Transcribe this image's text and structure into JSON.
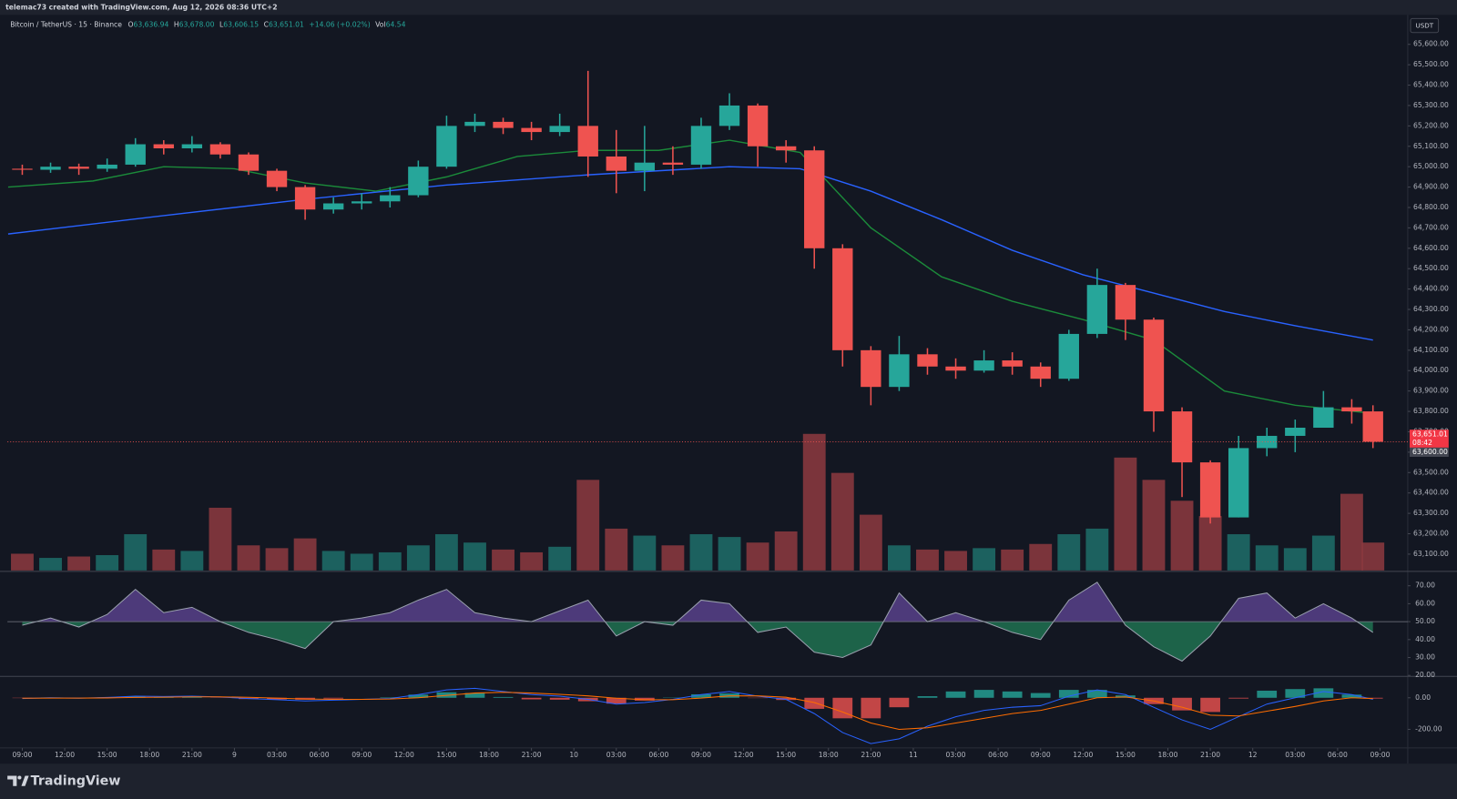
{
  "header": {
    "credit": "telemac73 created with TradingView.com, Aug 12, 2026 08:36 UTC+2",
    "symbol": "Bitcoin / TetherUS · 15 · Binance",
    "ohlc": [
      {
        "label": "O",
        "value": "63,636.94"
      },
      {
        "label": "H",
        "value": "63,678.00"
      },
      {
        "label": "L",
        "value": "63,606.15"
      },
      {
        "label": "C",
        "value": "63,651.01"
      }
    ],
    "change": "+14.06 (+0.02%)",
    "volume_label": "Vol",
    "volume": "64.54"
  },
  "footer": {
    "brand": "TradingView"
  },
  "chart_data": [
    {
      "type": "candlestick",
      "currency": "USDT",
      "up_color": "#26a69a",
      "down_color": "#ef5350",
      "x": [
        0,
        2,
        4,
        6,
        8,
        10,
        12,
        14,
        16,
        18,
        20,
        22,
        24,
        26,
        28,
        30,
        32,
        34,
        36,
        38,
        40,
        42,
        44,
        46,
        48,
        50,
        52,
        54,
        56,
        58,
        60,
        62,
        64,
        66,
        68,
        70,
        72,
        74,
        76,
        78,
        80,
        82,
        84,
        86,
        88,
        90,
        92,
        94,
        95.5
      ],
      "open": [
        64990,
        64985,
        65000,
        64990,
        65010,
        65110,
        65090,
        65110,
        65060,
        64980,
        64900,
        64790,
        64820,
        64830,
        64860,
        65000,
        65200,
        65220,
        65190,
        65170,
        65200,
        65050,
        64980,
        65020,
        65010,
        65200,
        65300,
        65100,
        65080,
        64600,
        64100,
        63920,
        64080,
        64020,
        64000,
        64050,
        64020,
        63960,
        64180,
        64420,
        64250,
        63800,
        63550,
        63280,
        63620,
        63680,
        63720,
        63820,
        63800
      ],
      "high": [
        65010,
        65020,
        65015,
        65040,
        65140,
        65130,
        65150,
        65120,
        65070,
        64990,
        64910,
        64850,
        64870,
        64900,
        65030,
        65250,
        65260,
        65240,
        65220,
        65260,
        65470,
        65180,
        65200,
        65100,
        65240,
        65360,
        65310,
        65130,
        65100,
        64620,
        64120,
        64170,
        64110,
        64060,
        64100,
        64090,
        64040,
        64200,
        64500,
        64430,
        64260,
        63820,
        63560,
        63680,
        63720,
        63760,
        63900,
        63860,
        63830
      ],
      "low": [
        64960,
        64970,
        64960,
        64975,
        65000,
        65060,
        65070,
        65040,
        64960,
        64880,
        64740,
        64770,
        64790,
        64800,
        64850,
        64990,
        65170,
        65160,
        65130,
        65150,
        64950,
        64870,
        64880,
        64960,
        64990,
        65180,
        65000,
        65020,
        64500,
        64020,
        63830,
        63900,
        63980,
        63960,
        63990,
        63980,
        63920,
        63950,
        64160,
        64150,
        63700,
        63380,
        63250,
        63280,
        63580,
        63600,
        63720,
        63740,
        63620
      ],
      "close": [
        64985,
        65000,
        64990,
        65010,
        65110,
        65090,
        65110,
        65060,
        64980,
        64900,
        64790,
        64820,
        64830,
        64860,
        65000,
        65200,
        65220,
        65190,
        65170,
        65200,
        65050,
        64980,
        65020,
        65010,
        65200,
        65300,
        65100,
        65080,
        64600,
        64100,
        63920,
        64080,
        64020,
        64000,
        64050,
        64020,
        63960,
        64180,
        64420,
        64250,
        63800,
        63550,
        63280,
        63620,
        63680,
        63720,
        63820,
        63800,
        63651.01
      ],
      "lines": [
        {
          "color": "#2962ff",
          "x": [
            -1,
            10,
            20,
            30,
            40,
            50,
            55,
            60,
            65,
            70,
            75,
            80,
            85,
            90,
            95.5
          ],
          "values": [
            64670,
            64760,
            64840,
            64910,
            64960,
            65000,
            64990,
            64880,
            64740,
            64590,
            64470,
            64380,
            64290,
            64220,
            64150
          ]
        },
        {
          "color": "#1b8a3a",
          "x": [
            -1,
            5,
            10,
            15,
            20,
            25,
            30,
            35,
            40,
            45,
            50,
            55,
            60,
            65,
            70,
            75,
            80,
            85,
            90,
            95.5
          ],
          "values": [
            64900,
            64930,
            65000,
            64990,
            64920,
            64880,
            64950,
            65050,
            65080,
            65080,
            65130,
            65070,
            64700,
            64460,
            64340,
            64250,
            64150,
            63900,
            63830,
            63790
          ]
        }
      ],
      "last_price": {
        "value": 63651.01,
        "label": "63,651.01"
      },
      "countdown": "08:42",
      "marker_price": {
        "value": 63600,
        "label": "63,600.00"
      },
      "xlim": [
        -1.05,
        97.96
      ],
      "xticks": [
        {
          "value": 0,
          "label": "09:00"
        },
        {
          "value": 3,
          "label": "12:00"
        },
        {
          "value": 6,
          "label": "15:00"
        },
        {
          "value": 9,
          "label": "18:00"
        },
        {
          "value": 12,
          "label": "21:00"
        },
        {
          "value": 15,
          "label": "9"
        },
        {
          "value": 18,
          "label": "03:00"
        },
        {
          "value": 21,
          "label": "06:00"
        },
        {
          "value": 24,
          "label": "09:00"
        },
        {
          "value": 27,
          "label": "12:00"
        },
        {
          "value": 30,
          "label": "15:00"
        },
        {
          "value": 33,
          "label": "18:00"
        },
        {
          "value": 36,
          "label": "21:00"
        },
        {
          "value": 39,
          "label": "10"
        },
        {
          "value": 42,
          "label": "03:00"
        },
        {
          "value": 45,
          "label": "06:00"
        },
        {
          "value": 48,
          "label": "09:00"
        },
        {
          "value": 51,
          "label": "12:00"
        },
        {
          "value": 54,
          "label": "15:00"
        },
        {
          "value": 57,
          "label": "18:00"
        },
        {
          "value": 60,
          "label": "21:00"
        },
        {
          "value": 63,
          "label": "11"
        },
        {
          "value": 66,
          "label": "03:00"
        },
        {
          "value": 69,
          "label": "06:00"
        },
        {
          "value": 72,
          "label": "09:00"
        },
        {
          "value": 75,
          "label": "12:00"
        },
        {
          "value": 78,
          "label": "15:00"
        },
        {
          "value": 81,
          "label": "18:00"
        },
        {
          "value": 84,
          "label": "21:00"
        },
        {
          "value": 87,
          "label": "12"
        },
        {
          "value": 90,
          "label": "03:00"
        },
        {
          "value": 93,
          "label": "06:00"
        },
        {
          "value": 96,
          "label": "09:00"
        }
      ],
      "ylim": [
        63020,
        65740
      ],
      "yticks": [
        {
          "value": 63100,
          "label": "63,100.00"
        },
        {
          "value": 63200,
          "label": "63,200.00"
        },
        {
          "value": 63300,
          "label": "63,300.00"
        },
        {
          "value": 63400,
          "label": "63,400.00"
        },
        {
          "value": 63500,
          "label": "63,500.00"
        },
        {
          "value": 63600,
          "label": "63,600.00"
        },
        {
          "value": 63700,
          "label": "63,700.00"
        },
        {
          "value": 63800,
          "label": "63,800.00"
        },
        {
          "value": 63900,
          "label": "63,900.00"
        },
        {
          "value": 64000,
          "label": "64,000.00"
        },
        {
          "value": 64100,
          "label": "64,100.00"
        },
        {
          "value": 64200,
          "label": "64,200.00"
        },
        {
          "value": 64300,
          "label": "64,300.00"
        },
        {
          "value": 64400,
          "label": "64,400.00"
        },
        {
          "value": 64500,
          "label": "64,500.00"
        },
        {
          "value": 64600,
          "label": "64,600.00"
        },
        {
          "value": 64700,
          "label": "64,700.00"
        },
        {
          "value": 64800,
          "label": "64,800.00"
        },
        {
          "value": 64900,
          "label": "64,900.00"
        },
        {
          "value": 65000,
          "label": "65,000.00"
        },
        {
          "value": 65100,
          "label": "65,100.00"
        },
        {
          "value": 65200,
          "label": "65,200.00"
        },
        {
          "value": 65300,
          "label": "65,300.00"
        },
        {
          "value": 65400,
          "label": "65,400.00"
        },
        {
          "value": 65500,
          "label": "65,500.00"
        },
        {
          "value": 65600,
          "label": "65,600.00"
        }
      ]
    },
    {
      "type": "volume",
      "up_color": "#1f6f6a",
      "down_color": "#8e3a3f",
      "vlim": [
        0,
        1000
      ],
      "values": [
        120,
        90,
        100,
        110,
        260,
        150,
        140,
        450,
        180,
        160,
        230,
        140,
        120,
        130,
        180,
        260,
        200,
        150,
        130,
        170,
        650,
        300,
        250,
        180,
        260,
        240,
        200,
        280,
        980,
        700,
        400,
        180,
        150,
        140,
        160,
        150,
        190,
        260,
        300,
        810,
        650,
        500,
        390,
        260,
        180,
        160,
        250,
        550,
        200
      ]
    },
    {
      "type": "rsi",
      "color": "#9aa0ae",
      "above_color": "#7e57c2",
      "below_color": "#26a269",
      "midline": 50,
      "ylim": [
        20,
        77
      ],
      "yticks": [
        {
          "value": 70,
          "label": "70.00"
        },
        {
          "value": 60,
          "label": "60.00"
        },
        {
          "value": 50,
          "label": "50.00"
        },
        {
          "value": 40,
          "label": "40.00"
        },
        {
          "value": 30,
          "label": "30.00"
        },
        {
          "value": 20,
          "label": "20.00"
        }
      ],
      "values": [
        48,
        52,
        47,
        54,
        68,
        55,
        58,
        50,
        44,
        40,
        35,
        50,
        52,
        55,
        62,
        68,
        55,
        52,
        50,
        56,
        62,
        42,
        50,
        48,
        62,
        60,
        44,
        47,
        33,
        30,
        37,
        66,
        50,
        55,
        50,
        44,
        40,
        62,
        72,
        48,
        36,
        28,
        42,
        63,
        66,
        52,
        60,
        52,
        44
      ]
    },
    {
      "type": "macd",
      "macd_color": "#2962ff",
      "signal_color": "#ff6d00",
      "hist_up_color": "#26a69a",
      "hist_down_color": "#ef5350",
      "ylim": [
        -394,
        118
      ],
      "yticks": [
        {
          "value": 0,
          "label": "0.00"
        },
        {
          "value": -200,
          "label": "-200.00"
        }
      ],
      "macd": [
        -5,
        0,
        -3,
        2,
        10,
        8,
        10,
        5,
        -5,
        -12,
        -20,
        -15,
        -10,
        -5,
        20,
        50,
        60,
        40,
        20,
        10,
        -10,
        -40,
        -30,
        -10,
        20,
        40,
        10,
        -10,
        -100,
        -220,
        -290,
        -260,
        -180,
        -120,
        -80,
        -60,
        -50,
        10,
        50,
        20,
        -60,
        -140,
        -200,
        -120,
        -40,
        0,
        40,
        20,
        -10
      ],
      "signal": [
        -3,
        -2,
        -2,
        -1,
        2,
        4,
        6,
        6,
        3,
        -2,
        -8,
        -10,
        -10,
        -8,
        0,
        15,
        30,
        35,
        30,
        22,
        12,
        -3,
        -12,
        -12,
        -2,
        12,
        12,
        4,
        -30,
        -90,
        -160,
        -200,
        -190,
        -160,
        -130,
        -100,
        -80,
        -40,
        0,
        5,
        -20,
        -60,
        -110,
        -115,
        -85,
        -55,
        -20,
        0,
        -5
      ],
      "histogram": [
        -2,
        2,
        -1,
        3,
        8,
        4,
        4,
        -1,
        -8,
        -10,
        -12,
        -5,
        0,
        3,
        20,
        35,
        30,
        5,
        -10,
        -12,
        -22,
        -37,
        -18,
        2,
        22,
        28,
        -2,
        -14,
        -70,
        -130,
        -130,
        -60,
        10,
        40,
        50,
        40,
        30,
        50,
        50,
        15,
        -40,
        -80,
        -90,
        -5,
        45,
        55,
        60,
        20,
        -5
      ]
    }
  ]
}
